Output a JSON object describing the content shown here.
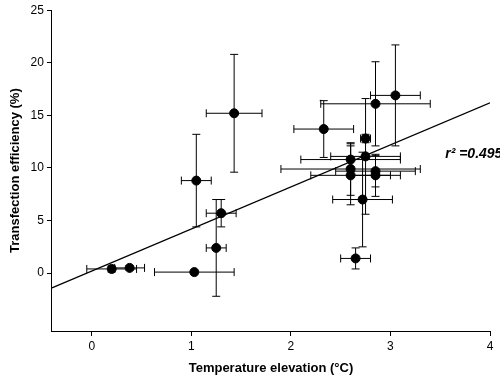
{
  "chart_data": {
    "type": "scatter",
    "x_label": "Temperature elevation (°C)",
    "y_label": "Transfection efficiency (%)",
    "x": [
      0.2,
      0.38,
      1.03,
      1.05,
      1.25,
      1.3,
      1.43,
      2.33,
      2.6,
      2.6,
      2.6,
      2.65,
      2.72,
      2.75,
      2.75,
      2.85,
      2.85,
      2.85,
      3.05
    ],
    "values": [
      0.4,
      0.5,
      0.1,
      8.8,
      2.4,
      5.7,
      15.2,
      13.7,
      10.8,
      9.9,
      9.3,
      1.4,
      7.0,
      12.8,
      11.1,
      16.1,
      9.7,
      9.3,
      16.9
    ],
    "x_errors": [
      0.25,
      0.15,
      0.4,
      0.15,
      0.1,
      0.15,
      0.28,
      0.3,
      0.5,
      0.7,
      0.4,
      0.15,
      0.3,
      0.05,
      0.35,
      0.55,
      0.4,
      0.25,
      0.25
    ],
    "y_errors": [
      0.3,
      0.2,
      0,
      4.4,
      4.6,
      1.3,
      5.6,
      2.7,
      1.5,
      2.5,
      2.8,
      1.0,
      4.5,
      0.4,
      5.5,
      4.0,
      1.5,
      2.0,
      4.8
    ],
    "fit": {
      "x": [
        -0.4,
        4
      ],
      "values": [
        -1.4,
        16.2
      ]
    },
    "annotations": [
      {
        "text": "r² =0.495",
        "x": 3.55,
        "y": 11.3
      }
    ],
    "color": "#000000",
    "marker": "circle",
    "xlim": [
      -0.4,
      4
    ],
    "xticks": [
      0,
      1,
      2,
      3,
      4
    ],
    "ylim": [
      -5.5,
      25
    ],
    "yticks": [
      0,
      5,
      10,
      15,
      20,
      25
    ],
    "grid": false
  }
}
